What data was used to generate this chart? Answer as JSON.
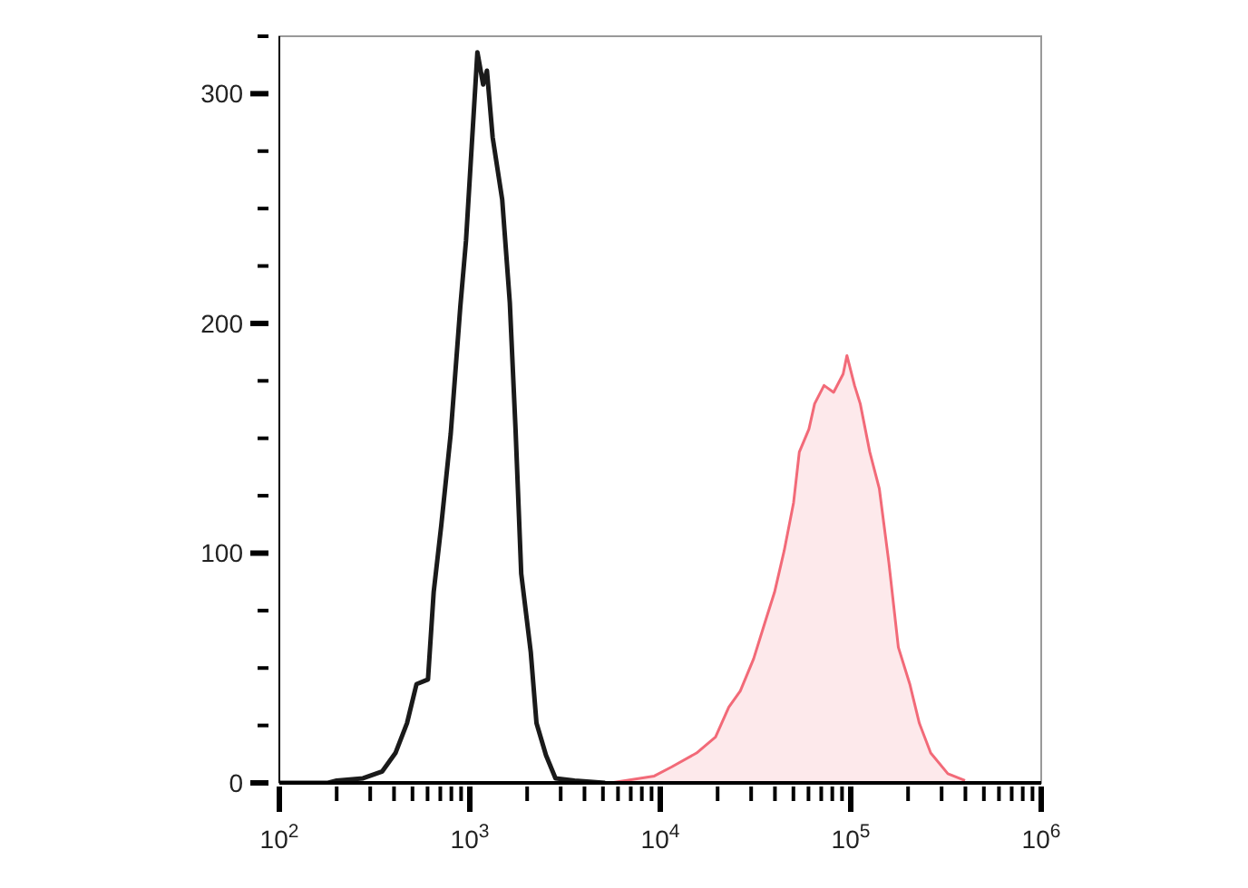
{
  "chart_data": {
    "type": "line",
    "log": "x",
    "xlim": [
      100,
      1000000
    ],
    "ylim": [
      0,
      325
    ],
    "xticks": [
      {
        "value": 100,
        "label": "10$^{2}$"
      },
      {
        "value": 200,
        "label": null
      },
      {
        "value": 300,
        "label": null
      },
      {
        "value": 400,
        "label": null
      },
      {
        "value": 500,
        "label": null
      },
      {
        "value": 600,
        "label": null
      },
      {
        "value": 700,
        "label": null
      },
      {
        "value": 800,
        "label": null
      },
      {
        "value": 900,
        "label": null
      },
      {
        "value": 1000,
        "label": "10$^{3}$"
      },
      {
        "value": 2000,
        "label": null
      },
      {
        "value": 3000,
        "label": null
      },
      {
        "value": 4000,
        "label": null
      },
      {
        "value": 5000,
        "label": null
      },
      {
        "value": 6000,
        "label": null
      },
      {
        "value": 7000,
        "label": null
      },
      {
        "value": 8000,
        "label": null
      },
      {
        "value": 9000,
        "label": null
      },
      {
        "value": 10000,
        "label": "10$^{4}$"
      },
      {
        "value": 20000,
        "label": null
      },
      {
        "value": 30000,
        "label": null
      },
      {
        "value": 40000,
        "label": null
      },
      {
        "value": 50000,
        "label": null
      },
      {
        "value": 60000,
        "label": null
      },
      {
        "value": 70000,
        "label": null
      },
      {
        "value": 80000,
        "label": null
      },
      {
        "value": 90000,
        "label": null
      },
      {
        "value": 100000,
        "label": "10$^{5}$"
      },
      {
        "value": 200000,
        "label": null
      },
      {
        "value": 300000,
        "label": null
      },
      {
        "value": 400000,
        "label": null
      },
      {
        "value": 500000,
        "label": null
      },
      {
        "value": 600000,
        "label": null
      },
      {
        "value": 700000,
        "label": null
      },
      {
        "value": 800000,
        "label": null
      },
      {
        "value": 900000,
        "label": null
      },
      {
        "value": 1000000,
        "label": "10$^{6}$"
      }
    ],
    "yticks": [
      0,
      {
        "value": 25,
        "label": null
      },
      {
        "value": 50,
        "label": null
      },
      {
        "value": 75,
        "label": null
      },
      100,
      {
        "value": 125,
        "label": null
      },
      {
        "value": 150,
        "label": null
      },
      {
        "value": 175,
        "label": null
      },
      200,
      {
        "value": 225,
        "label": null
      },
      {
        "value": 250,
        "label": null
      },
      {
        "value": 275,
        "label": null
      },
      300,
      {
        "value": 325,
        "label": null
      }
    ],
    "series": [
      {
        "type": "area",
        "color": "#f26a78",
        "x": [
          5500,
          9300,
          11500,
          15500,
          19500,
          22900,
          26300,
          30900,
          35500,
          39800,
          44700,
          50100,
          53700,
          60300,
          64600,
          72400,
          81300,
          91200,
          95500,
          104700,
          112200,
          125900,
          141300,
          158500,
          177800,
          204200,
          229100,
          263000,
          323600,
          398100
        ],
        "values": [
          0,
          3,
          7,
          13,
          20,
          33,
          40,
          54,
          70,
          83,
          101,
          122,
          144,
          154,
          165,
          173,
          170,
          178,
          186,
          173,
          165,
          144,
          128,
          96,
          59,
          43,
          26,
          13,
          4,
          1
        ]
      },
      {
        "color": "#1a1a1a",
        "x": [
          100,
          180,
          200,
          275,
          347,
          407,
          468,
          525,
          603,
          646,
          708,
          794,
          891,
          955,
          1023,
          1096,
          1175,
          1230,
          1318,
          1479,
          1622,
          1738,
          1862,
          2089,
          2239,
          2512,
          2818,
          3548,
          5130
        ],
        "values": [
          0,
          0,
          1,
          2,
          5,
          13,
          26,
          43,
          45,
          83,
          112,
          152,
          207,
          236,
          277,
          318,
          304,
          310,
          281,
          254,
          209,
          154,
          91,
          57,
          26,
          12,
          2,
          1,
          0
        ]
      }
    ]
  }
}
